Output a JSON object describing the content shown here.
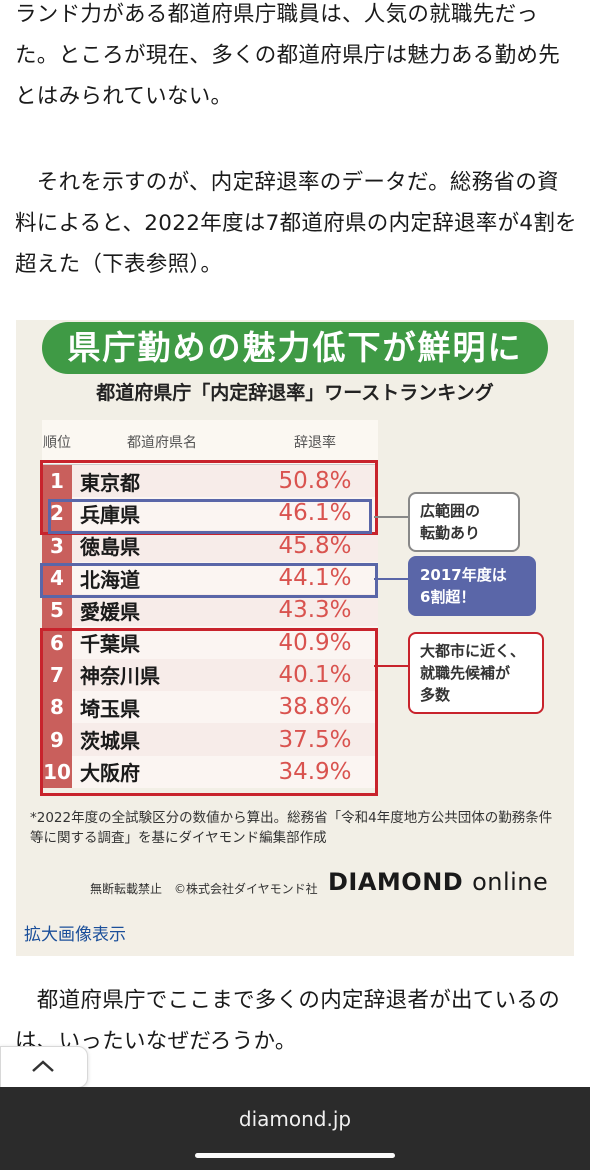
{
  "article": {
    "p1": "ランド力がある都道府県庁職員は、人気の就職先だった。ところが現在、多くの都道府県庁は魅力ある勤め先とはみられていない。",
    "p2": "　それを示すのが、内定辞退率のデータだ。総務省の資料によると、2022年度は7都道府県の内定辞退率が4割を超えた（下表参照）。",
    "p3": "　都道府県庁でここまで多くの内定辞退者が出ているのは、いったいなぜだろうか。"
  },
  "figure": {
    "banner": "県庁勤めの魅力低下が鮮明に",
    "subtitle": "都道府県庁「内定辞退率」ワーストランキング",
    "headers": {
      "rank": "順位",
      "name": "都道府県名",
      "rate": "辞退率"
    },
    "rows": [
      {
        "rank": "1",
        "name": "東京都",
        "rate": "50.8%"
      },
      {
        "rank": "2",
        "name": "兵庫県",
        "rate": "46.1%"
      },
      {
        "rank": "3",
        "name": "徳島県",
        "rate": "45.8%"
      },
      {
        "rank": "4",
        "name": "北海道",
        "rate": "44.1%"
      },
      {
        "rank": "5",
        "name": "愛媛県",
        "rate": "43.3%"
      },
      {
        "rank": "6",
        "name": "千葉県",
        "rate": "40.9%"
      },
      {
        "rank": "7",
        "name": "神奈川県",
        "rate": "40.1%"
      },
      {
        "rank": "8",
        "name": "埼玉県",
        "rate": "38.8%"
      },
      {
        "rank": "9",
        "name": "茨城県",
        "rate": "37.5%"
      },
      {
        "rank": "10",
        "name": "大阪府",
        "rate": "34.9%"
      }
    ],
    "callouts": {
      "wide": "広範囲の\n転勤あり",
      "hokkaido": "2017年度は\n6割超！",
      "metro": "大都市に近く、\n就職先候補が\n多数"
    },
    "note": "*2022年度の全試験区分の数値から算出。総務省「令和4年度地方公共団体の勤務条件等に関する調査」を基にダイヤモンド編集部作成",
    "footer": "無断転載禁止　©株式会社ダイヤモンド社",
    "logo_main": "DIAMOND",
    "logo_sub": "online",
    "enlarge_link": "拡大画像表示"
  },
  "browser": {
    "url": "diamond.jp"
  }
}
